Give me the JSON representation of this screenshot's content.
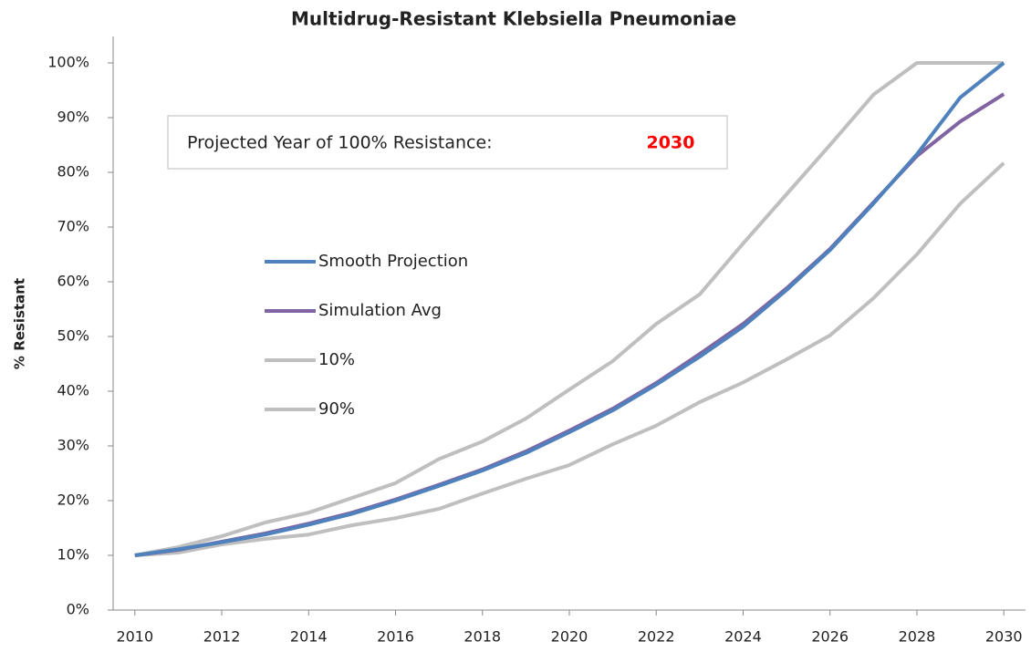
{
  "chart_data": {
    "type": "line",
    "title": "Multidrug-Resistant Klebsiella Pneumoniae",
    "ylabel": "% Resistant",
    "annotation": {
      "text": "Projected Year of 100% Resistance:",
      "value": "2030"
    },
    "x": [
      2010,
      2011,
      2012,
      2013,
      2014,
      2015,
      2016,
      2017,
      2018,
      2019,
      2020,
      2021,
      2022,
      2023,
      2024,
      2025,
      2026,
      2027,
      2028,
      2029,
      2030
    ],
    "series": [
      {
        "name": "Smooth Projection",
        "color": "#4f81bd",
        "values": [
          10,
          11.1,
          12.4,
          13.8,
          15.6,
          17.6,
          20,
          22.7,
          25.5,
          28.7,
          32.5,
          36.5,
          41.2,
          46.3,
          51.8,
          58.5,
          65.8,
          74.3,
          83.3,
          93.7,
          100
        ]
      },
      {
        "name": "Simulation Avg",
        "color": "#8064a2",
        "values": [
          10,
          11,
          12.5,
          14,
          15.8,
          17.8,
          20.2,
          22.9,
          25.7,
          29,
          32.8,
          36.8,
          41.5,
          46.8,
          52.3,
          58.8,
          66,
          74.5,
          83,
          89.3,
          94.3
        ]
      },
      {
        "name": "10%",
        "color": "#bfbfbf",
        "values": [
          10,
          10.5,
          12,
          13,
          13.8,
          15.5,
          16.8,
          18.5,
          21.3,
          24,
          26.5,
          30.3,
          33.7,
          38,
          41.6,
          45.8,
          50.2,
          57,
          65,
          74.3,
          81.7
        ]
      },
      {
        "name": "90%",
        "color": "#bfbfbf",
        "values": [
          10,
          11.5,
          13.5,
          16,
          17.8,
          20.5,
          23.2,
          27.6,
          30.8,
          35,
          40.3,
          45.5,
          52.3,
          57.7,
          67,
          76,
          85,
          94.2,
          100,
          100,
          100
        ]
      }
    ],
    "xlim": [
      2009.5,
      2030.5
    ],
    "xticks": [
      2010,
      2012,
      2014,
      2016,
      2018,
      2020,
      2022,
      2024,
      2026,
      2028,
      2030
    ],
    "ylim": [
      0,
      100
    ],
    "yticks": [
      {
        "value": 0,
        "label": "0%"
      },
      {
        "value": 10,
        "label": "10%"
      },
      {
        "value": 20,
        "label": "20%"
      },
      {
        "value": 30,
        "label": "30%"
      },
      {
        "value": 40,
        "label": "40%"
      },
      {
        "value": 50,
        "label": "50%"
      },
      {
        "value": 60,
        "label": "60%"
      },
      {
        "value": 70,
        "label": "70%"
      },
      {
        "value": 80,
        "label": "80%"
      },
      {
        "value": 90,
        "label": "90%"
      },
      {
        "value": 100,
        "label": "100%"
      }
    ],
    "grid": false
  }
}
